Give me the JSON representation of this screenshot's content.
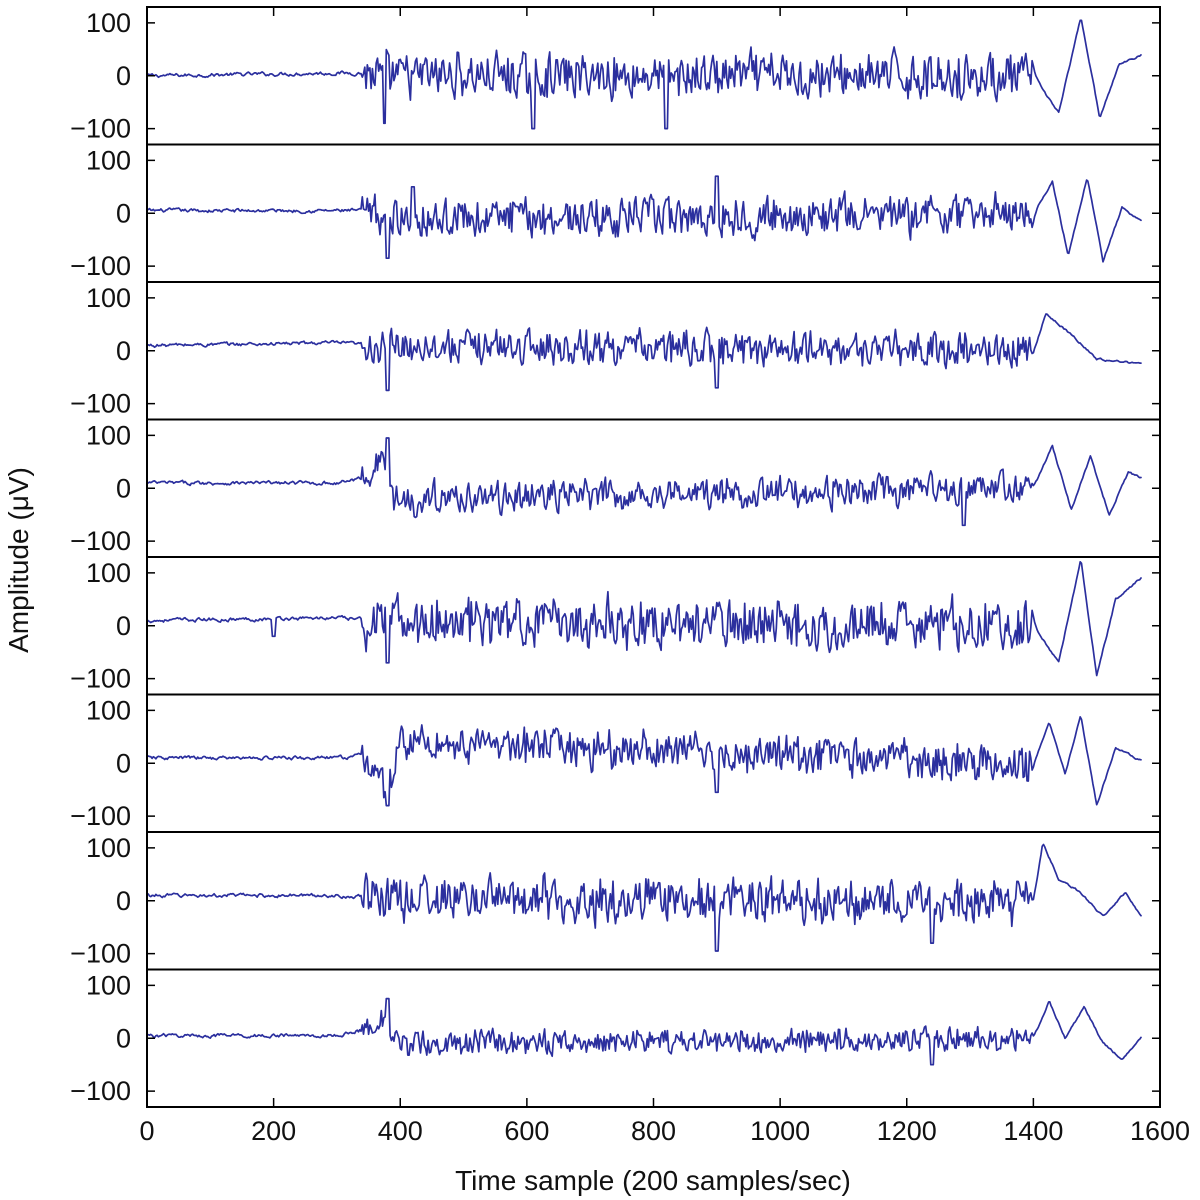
{
  "chart_data": {
    "type": "line",
    "title": "",
    "xlabel": "Time sample (200 samples/sec)",
    "ylabel": "Amplitude (μV)",
    "xlim": [
      0,
      1600
    ],
    "x_ticks": [
      "0",
      "200",
      "400",
      "600",
      "800",
      "1000",
      "1200",
      "1400",
      "1600"
    ],
    "x_tick_values": [
      0,
      200,
      400,
      600,
      800,
      1000,
      1200,
      1400,
      1600
    ],
    "ylim": [
      -130,
      130
    ],
    "y_ticks": [
      "100",
      "0",
      "−100"
    ],
    "y_tick_values": [
      100,
      0,
      -100
    ],
    "line_color": "#2b2f9e",
    "grid": false,
    "sample_rate_hz": 200,
    "n_samples": 1570,
    "channels": [
      {
        "baseline": [
          [
            0,
            0
          ],
          [
            300,
            5
          ],
          [
            345,
            5
          ],
          [
            370,
            0
          ],
          [
            1400,
            0
          ],
          [
            1440,
            -70
          ],
          [
            1475,
            110
          ],
          [
            1505,
            -80
          ],
          [
            1535,
            20
          ],
          [
            1570,
            40
          ]
        ],
        "burst_amp": 65,
        "spikes": [
          [
            375,
            -90
          ],
          [
            610,
            -100
          ],
          [
            820,
            -100
          ]
        ]
      },
      {
        "baseline": [
          [
            0,
            5
          ],
          [
            300,
            5
          ],
          [
            340,
            5
          ],
          [
            370,
            -10
          ],
          [
            1400,
            0
          ],
          [
            1430,
            60
          ],
          [
            1455,
            -80
          ],
          [
            1485,
            70
          ],
          [
            1510,
            -90
          ],
          [
            1540,
            10
          ],
          [
            1570,
            -15
          ]
        ],
        "burst_amp": 55,
        "spikes": [
          [
            380,
            -85
          ],
          [
            420,
            50
          ],
          [
            900,
            70
          ]
        ]
      },
      {
        "baseline": [
          [
            0,
            10
          ],
          [
            300,
            15
          ],
          [
            360,
            10
          ],
          [
            1400,
            0
          ],
          [
            1420,
            70
          ],
          [
            1460,
            30
          ],
          [
            1500,
            -15
          ],
          [
            1570,
            -25
          ]
        ],
        "burst_amp": 50,
        "spikes": [
          [
            380,
            -75
          ],
          [
            900,
            -70
          ]
        ]
      },
      {
        "baseline": [
          [
            0,
            10
          ],
          [
            300,
            10
          ],
          [
            345,
            20
          ],
          [
            375,
            60
          ],
          [
            390,
            -20
          ],
          [
            1400,
            0
          ],
          [
            1430,
            80
          ],
          [
            1460,
            -40
          ],
          [
            1490,
            60
          ],
          [
            1520,
            -50
          ],
          [
            1550,
            30
          ],
          [
            1570,
            20
          ]
        ],
        "burst_amp": 45,
        "spikes": [
          [
            380,
            95
          ],
          [
            1290,
            -70
          ]
        ]
      },
      {
        "baseline": [
          [
            0,
            10
          ],
          [
            300,
            15
          ],
          [
            360,
            10
          ],
          [
            1400,
            0
          ],
          [
            1440,
            -70
          ],
          [
            1475,
            125
          ],
          [
            1500,
            -95
          ],
          [
            1530,
            50
          ],
          [
            1570,
            90
          ]
        ],
        "burst_amp": 70,
        "spikes": [
          [
            200,
            -20
          ],
          [
            380,
            -70
          ]
        ]
      },
      {
        "baseline": [
          [
            0,
            10
          ],
          [
            300,
            10
          ],
          [
            345,
            15
          ],
          [
            380,
            -60
          ],
          [
            400,
            40
          ],
          [
            1400,
            0
          ],
          [
            1425,
            80
          ],
          [
            1450,
            -20
          ],
          [
            1475,
            90
          ],
          [
            1500,
            -80
          ],
          [
            1530,
            30
          ],
          [
            1570,
            5
          ]
        ],
        "burst_amp": 55,
        "spikes": [
          [
            380,
            -80
          ],
          [
            900,
            -55
          ]
        ]
      },
      {
        "baseline": [
          [
            0,
            10
          ],
          [
            300,
            10
          ],
          [
            370,
            5
          ],
          [
            1400,
            0
          ],
          [
            1415,
            110
          ],
          [
            1440,
            40
          ],
          [
            1470,
            20
          ],
          [
            1510,
            -30
          ],
          [
            1545,
            15
          ],
          [
            1570,
            -30
          ]
        ],
        "burst_amp": 65,
        "spikes": [
          [
            900,
            -95
          ],
          [
            1240,
            -80
          ]
        ]
      },
      {
        "baseline": [
          [
            0,
            5
          ],
          [
            300,
            5
          ],
          [
            340,
            15
          ],
          [
            370,
            40
          ],
          [
            385,
            -10
          ],
          [
            1400,
            0
          ],
          [
            1425,
            70
          ],
          [
            1450,
            0
          ],
          [
            1480,
            60
          ],
          [
            1510,
            -10
          ],
          [
            1540,
            -40
          ],
          [
            1570,
            0
          ]
        ],
        "burst_amp": 35,
        "spikes": [
          [
            380,
            75
          ],
          [
            1240,
            -50
          ]
        ]
      }
    ]
  }
}
